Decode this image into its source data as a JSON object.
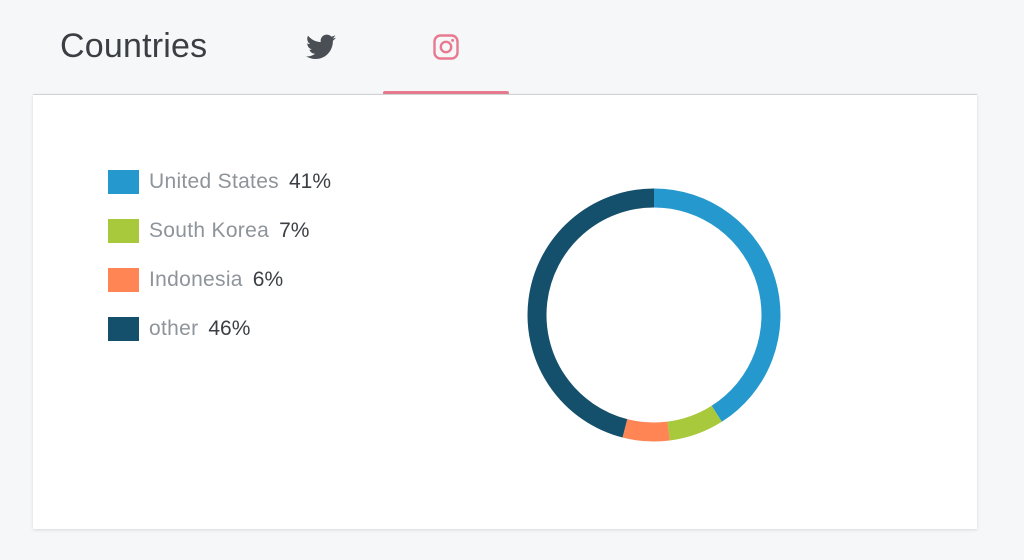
{
  "header": {
    "title": "Countries",
    "tabs": [
      {
        "icon": "twitter-icon",
        "color": "#4a4f55",
        "active": false
      },
      {
        "icon": "instagram-icon",
        "color": "#e87a90",
        "active": true
      }
    ],
    "accent": "#e87a90"
  },
  "chart_data": {
    "type": "pie",
    "variant": "donut",
    "title": "",
    "categories": [
      "United States",
      "South Korea",
      "Indonesia",
      "other"
    ],
    "values": [
      41,
      7,
      6,
      46
    ],
    "value_labels": [
      "41%",
      "7%",
      "6%",
      "46%"
    ],
    "colors": [
      "#2598cd",
      "#a9c93d",
      "#ff8555",
      "#144f6b"
    ],
    "start_angle_deg": 0,
    "direction": "clockwise",
    "legend_position": "left"
  }
}
